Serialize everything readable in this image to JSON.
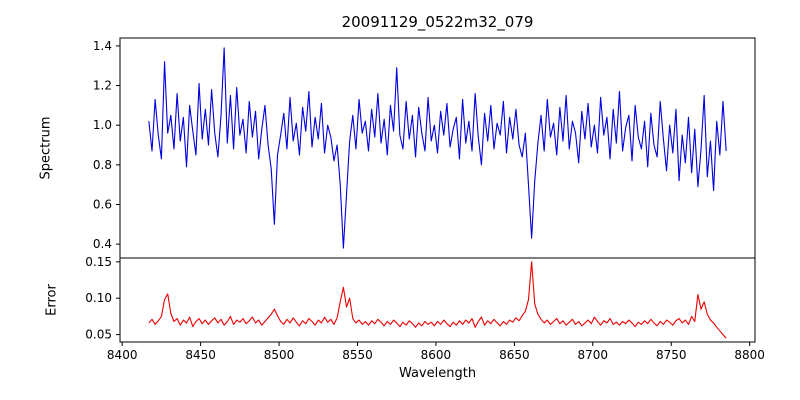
{
  "chart_data": {
    "type": "line",
    "title": "20091129_0522m32_079",
    "xlabel": "Wavelength",
    "xlim": [
      8398.6,
      8803.4
    ],
    "xtick_values": [
      8400,
      8450,
      8500,
      8550,
      8600,
      8650,
      8700,
      8750,
      8800
    ],
    "xtick_labels": [
      "8400",
      "8450",
      "8500",
      "8550",
      "8600",
      "8650",
      "8700",
      "8750",
      "8800"
    ],
    "x": [
      8417,
      8419,
      8421,
      8423,
      8425,
      8427,
      8429,
      8431,
      8433,
      8435,
      8437,
      8439,
      8441,
      8443,
      8445,
      8447,
      8449,
      8451,
      8453,
      8455,
      8457,
      8459,
      8461,
      8463,
      8465,
      8467,
      8469,
      8471,
      8473,
      8475,
      8477,
      8479,
      8481,
      8483,
      8485,
      8487,
      8489,
      8491,
      8493,
      8495,
      8497,
      8499,
      8501,
      8503,
      8505,
      8507,
      8509,
      8511,
      8513,
      8515,
      8517,
      8519,
      8521,
      8523,
      8525,
      8527,
      8529,
      8531,
      8533,
      8535,
      8537,
      8539,
      8541,
      8543,
      8545,
      8547,
      8549,
      8551,
      8553,
      8555,
      8557,
      8559,
      8561,
      8563,
      8565,
      8567,
      8569,
      8571,
      8573,
      8575,
      8577,
      8579,
      8581,
      8583,
      8585,
      8587,
      8589,
      8591,
      8593,
      8595,
      8597,
      8599,
      8601,
      8603,
      8605,
      8607,
      8609,
      8611,
      8613,
      8615,
      8617,
      8619,
      8621,
      8623,
      8625,
      8627,
      8629,
      8631,
      8633,
      8635,
      8637,
      8639,
      8641,
      8643,
      8645,
      8647,
      8649,
      8651,
      8653,
      8655,
      8657,
      8659,
      8661,
      8663,
      8665,
      8667,
      8669,
      8671,
      8673,
      8675,
      8677,
      8679,
      8681,
      8683,
      8685,
      8687,
      8689,
      8691,
      8693,
      8695,
      8697,
      8699,
      8701,
      8703,
      8705,
      8707,
      8709,
      8711,
      8713,
      8715,
      8717,
      8719,
      8721,
      8723,
      8725,
      8727,
      8729,
      8731,
      8733,
      8735,
      8737,
      8739,
      8741,
      8743,
      8745,
      8747,
      8749,
      8751,
      8753,
      8755,
      8757,
      8759,
      8761,
      8763,
      8765,
      8767,
      8769,
      8771,
      8773,
      8775,
      8777,
      8779,
      8781,
      8783,
      8785
    ],
    "subplots": [
      {
        "name": "spectrum",
        "ylabel": "Spectrum",
        "color": "#0000dd",
        "ylim": [
          0.33,
          1.44
        ],
        "ytick_values": [
          0.4,
          0.6,
          0.8,
          1.0,
          1.2,
          1.4
        ],
        "ytick_labels": [
          "0.4",
          "0.6",
          "0.8",
          "1.0",
          "1.2",
          "1.4"
        ],
        "y": [
          1.02,
          0.87,
          1.13,
          0.95,
          0.83,
          1.32,
          0.96,
          1.05,
          0.88,
          1.16,
          0.92,
          1.04,
          0.79,
          1.1,
          0.97,
          0.85,
          1.21,
          0.93,
          1.08,
          0.9,
          1.18,
          0.96,
          0.84,
          1.05,
          1.39,
          0.91,
          1.15,
          0.88,
          1.19,
          0.95,
          1.03,
          0.86,
          1.12,
          0.94,
          1.07,
          0.83,
          0.98,
          1.1,
          0.9,
          0.78,
          0.5,
          0.85,
          0.95,
          1.06,
          0.88,
          1.14,
          0.92,
          1.01,
          0.85,
          1.09,
          0.97,
          1.17,
          0.89,
          1.04,
          0.93,
          1.11,
          0.86,
          1.0,
          0.94,
          0.82,
          0.9,
          0.7,
          0.38,
          0.65,
          0.92,
          1.05,
          0.88,
          1.13,
          0.96,
          1.02,
          0.87,
          1.08,
          0.94,
          1.16,
          0.91,
          1.03,
          0.85,
          1.1,
          0.97,
          1.29,
          0.95,
          0.88,
          1.12,
          0.93,
          1.05,
          0.84,
          1.09,
          0.96,
          0.87,
          1.14,
          0.92,
          1.0,
          0.86,
          1.07,
          0.95,
          1.11,
          0.89,
          0.98,
          1.04,
          0.83,
          1.13,
          0.91,
          1.02,
          0.87,
          1.16,
          0.94,
          0.8,
          1.06,
          0.92,
          1.1,
          0.88,
          1.01,
          0.95,
          1.12,
          0.86,
          1.04,
          0.93,
          1.08,
          0.9,
          0.84,
          0.96,
          0.7,
          0.43,
          0.72,
          0.91,
          1.05,
          0.87,
          1.13,
          0.94,
          1.01,
          0.85,
          1.09,
          0.92,
          1.15,
          0.88,
          1.02,
          0.96,
          0.81,
          1.07,
          0.93,
          1.11,
          0.89,
          1.0,
          0.86,
          1.14,
          0.95,
          1.04,
          0.83,
          1.08,
          0.91,
          1.17,
          0.87,
          0.99,
          1.05,
          0.82,
          1.1,
          0.94,
          0.88,
          1.02,
          0.79,
          1.06,
          0.9,
          0.84,
          1.12,
          0.93,
          0.77,
          1.0,
          0.86,
          1.08,
          0.72,
          0.95,
          0.81,
          1.04,
          0.76,
          0.98,
          0.69,
          0.88,
          1.15,
          0.74,
          0.92,
          0.67,
          1.02,
          0.85,
          1.12,
          0.87
        ],
        "features": "absorption dips near 8497 (0.50), 8541 (0.38), 8661 (0.43); peaks near 8465 (1.39), 8575 (1.29)"
      },
      {
        "name": "error",
        "ylabel": "Error",
        "color": "#ee0000",
        "ylim": [
          0.0398,
          0.1553
        ],
        "ytick_values": [
          0.05,
          0.1,
          0.15
        ],
        "ytick_labels": [
          "0.05",
          "0.10",
          "0.15"
        ],
        "y": [
          0.066,
          0.071,
          0.064,
          0.069,
          0.075,
          0.098,
          0.106,
          0.079,
          0.068,
          0.072,
          0.063,
          0.07,
          0.066,
          0.074,
          0.061,
          0.068,
          0.072,
          0.065,
          0.07,
          0.064,
          0.069,
          0.073,
          0.066,
          0.071,
          0.063,
          0.068,
          0.075,
          0.064,
          0.07,
          0.067,
          0.072,
          0.065,
          0.069,
          0.074,
          0.066,
          0.07,
          0.063,
          0.068,
          0.073,
          0.078,
          0.085,
          0.076,
          0.068,
          0.064,
          0.071,
          0.066,
          0.073,
          0.067,
          0.062,
          0.069,
          0.065,
          0.072,
          0.068,
          0.063,
          0.07,
          0.066,
          0.074,
          0.067,
          0.071,
          0.064,
          0.073,
          0.095,
          0.115,
          0.088,
          0.1,
          0.072,
          0.066,
          0.07,
          0.064,
          0.068,
          0.063,
          0.069,
          0.065,
          0.071,
          0.067,
          0.062,
          0.068,
          0.064,
          0.07,
          0.066,
          0.061,
          0.067,
          0.063,
          0.069,
          0.065,
          0.06,
          0.066,
          0.062,
          0.068,
          0.064,
          0.067,
          0.062,
          0.068,
          0.064,
          0.07,
          0.065,
          0.061,
          0.067,
          0.063,
          0.069,
          0.064,
          0.07,
          0.066,
          0.072,
          0.06,
          0.068,
          0.074,
          0.063,
          0.069,
          0.065,
          0.071,
          0.066,
          0.062,
          0.068,
          0.064,
          0.07,
          0.067,
          0.073,
          0.069,
          0.076,
          0.082,
          0.098,
          0.15,
          0.092,
          0.078,
          0.071,
          0.066,
          0.07,
          0.064,
          0.068,
          0.072,
          0.065,
          0.069,
          0.063,
          0.067,
          0.071,
          0.064,
          0.068,
          0.062,
          0.066,
          0.07,
          0.065,
          0.074,
          0.068,
          0.063,
          0.069,
          0.066,
          0.072,
          0.064,
          0.067,
          0.063,
          0.068,
          0.065,
          0.07,
          0.066,
          0.061,
          0.067,
          0.064,
          0.069,
          0.065,
          0.071,
          0.066,
          0.062,
          0.068,
          0.064,
          0.07,
          0.067,
          0.063,
          0.069,
          0.072,
          0.066,
          0.07,
          0.064,
          0.075,
          0.068,
          0.105,
          0.085,
          0.095,
          0.078,
          0.07,
          0.066,
          0.06,
          0.055,
          0.05,
          0.045
        ],
        "features": "error spikes near 8429 (0.106), 8541 (0.115), 8661 (0.15), 8767 (0.105)"
      }
    ],
    "layout": {
      "grid": false,
      "legend": "none",
      "frame_color": "#000000",
      "background": "#ffffff"
    }
  }
}
